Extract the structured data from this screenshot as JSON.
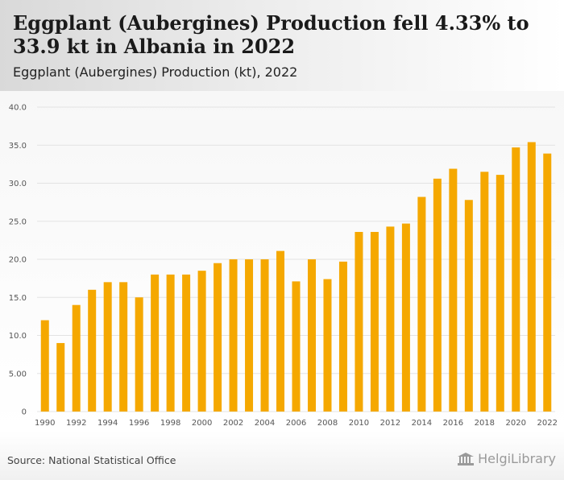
{
  "header": {
    "title": "Eggplant (Aubergines) Production fell 4.33% to 33.9 kt in Albania in 2022",
    "subtitle": "Eggplant (Aubergines) Production (kt), 2022"
  },
  "footer": {
    "source": "Source: National Statistical Office",
    "brand": "HelgiLibrary"
  },
  "colors": {
    "bar": "#f5a800",
    "grid": "#e3e3e3",
    "axis_text": "#555555"
  },
  "chart_data": {
    "type": "bar",
    "title": "Eggplant (Aubergines) Production (kt), 2022",
    "xlabel": "",
    "ylabel": "",
    "ylim": [
      0,
      40
    ],
    "yticks": [
      "0",
      "5.00",
      "10.0",
      "15.0",
      "20.0",
      "25.0",
      "30.0",
      "35.0",
      "40.0"
    ],
    "grid": true,
    "categories": [
      "1990",
      "1991",
      "1992",
      "1993",
      "1994",
      "1995",
      "1996",
      "1997",
      "1998",
      "1999",
      "2000",
      "2001",
      "2002",
      "2003",
      "2004",
      "2005",
      "2006",
      "2007",
      "2008",
      "2009",
      "2010",
      "2011",
      "2012",
      "2013",
      "2014",
      "2015",
      "2016",
      "2017",
      "2018",
      "2019",
      "2020",
      "2021",
      "2022"
    ],
    "xtick_labels": [
      "1990",
      "1992",
      "1994",
      "1996",
      "1998",
      "2000",
      "2002",
      "2004",
      "2006",
      "2008",
      "2010",
      "2012",
      "2014",
      "2016",
      "2018",
      "2020",
      "2022"
    ],
    "values": [
      12.0,
      9.0,
      14.0,
      16.0,
      17.0,
      17.0,
      15.0,
      18.0,
      18.0,
      18.0,
      18.5,
      19.5,
      20.0,
      20.0,
      20.0,
      21.1,
      17.1,
      20.0,
      17.4,
      19.7,
      23.6,
      23.6,
      24.3,
      24.7,
      28.2,
      30.6,
      31.9,
      27.8,
      31.5,
      31.1,
      34.7,
      35.4,
      33.9
    ]
  }
}
